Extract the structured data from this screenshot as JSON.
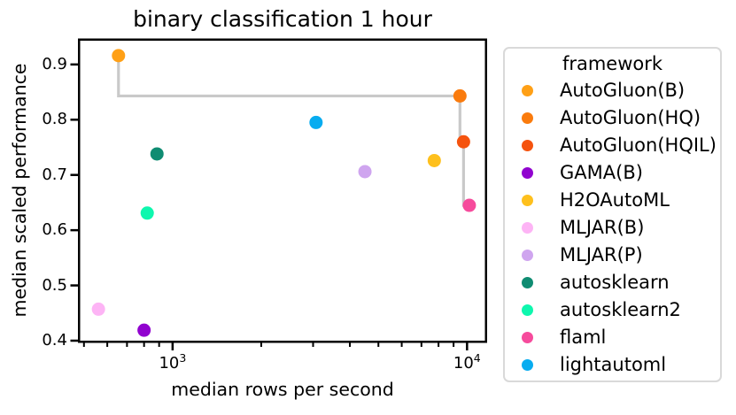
{
  "chart_data": {
    "type": "scatter",
    "title": "binary classification 1 hour",
    "xlabel": "median rows per second",
    "ylabel": "median scaled performance",
    "x_scale": "log10",
    "xlim": [
      477,
      11700
    ],
    "ylim": [
      0.396,
      0.947
    ],
    "grid": false,
    "legend_position": "outside-right",
    "x_major_ticks": [
      {
        "value": 1000,
        "label": "10^3"
      },
      {
        "value": 10000,
        "label": "10^4"
      }
    ],
    "x_minor_ticks": [
      500,
      600,
      700,
      800,
      900,
      2000,
      3000,
      4000,
      5000,
      6000,
      7000,
      8000,
      9000
    ],
    "y_ticks": [
      {
        "value": 0.4,
        "label": "0.4"
      },
      {
        "value": 0.5,
        "label": "0.5"
      },
      {
        "value": 0.6,
        "label": "0.6"
      },
      {
        "value": 0.7,
        "label": "0.7"
      },
      {
        "value": 0.8,
        "label": "0.8"
      },
      {
        "value": 0.9,
        "label": "0.9"
      }
    ],
    "legend_title": "framework",
    "series": [
      {
        "name": "AutoGluon(B)",
        "color": "#FFA016",
        "x": 655,
        "y": 0.916
      },
      {
        "name": "AutoGluon(HQ)",
        "color": "#FA7B0D",
        "x": 9460,
        "y": 0.843
      },
      {
        "name": "AutoGluon(HQIL)",
        "color": "#F5530E",
        "x": 9730,
        "y": 0.76
      },
      {
        "name": "GAMA(B)",
        "color": "#9103CF",
        "x": 800,
        "y": 0.419
      },
      {
        "name": "H2OAutoML",
        "color": "#FEC01D",
        "x": 7740,
        "y": 0.726
      },
      {
        "name": "MLJAR(B)",
        "color": "#FDB4F5",
        "x": 560,
        "y": 0.457
      },
      {
        "name": "MLJAR(P)",
        "color": "#CFA5EF",
        "x": 4500,
        "y": 0.706
      },
      {
        "name": "autosklearn",
        "color": "#0F8C72",
        "x": 885,
        "y": 0.738
      },
      {
        "name": "autosklearn2",
        "color": "#0EF7AE",
        "x": 820,
        "y": 0.631
      },
      {
        "name": "flaml",
        "color": "#F64B9C",
        "x": 10180,
        "y": 0.645
      },
      {
        "name": "lightautoml",
        "color": "#07ACF0",
        "x": 3070,
        "y": 0.795
      }
    ],
    "pareto_frontier": [
      "AutoGluon(B)",
      "AutoGluon(HQ)",
      "AutoGluon(HQIL)",
      "flaml"
    ],
    "colors": {
      "frontier_line": "#C9C9C9",
      "spine": "#000000",
      "text": "#000000",
      "legend_border": "#D9D9D9",
      "background": "#FFFFFF"
    }
  }
}
